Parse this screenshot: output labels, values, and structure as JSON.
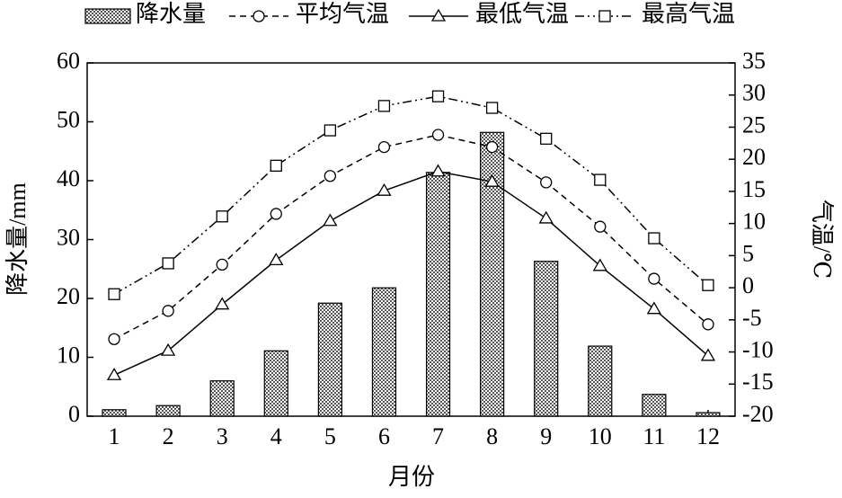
{
  "chart_data": {
    "type": "bar-line",
    "categories": [
      "1",
      "2",
      "3",
      "4",
      "5",
      "6",
      "7",
      "8",
      "9",
      "10",
      "11",
      "12"
    ],
    "xlabel": "月份",
    "ylabel": "降水量/mm",
    "y2label": "气温/℃",
    "ylim": [
      0,
      60
    ],
    "yticks": [
      0,
      10,
      20,
      30,
      40,
      50,
      60
    ],
    "y2lim": [
      -20,
      35
    ],
    "y2ticks": [
      -20,
      -15,
      -10,
      -5,
      0,
      5,
      10,
      15,
      20,
      25,
      30,
      35
    ],
    "legend": "top",
    "series": [
      {
        "name": "降水量",
        "type": "bar",
        "color": "#000000",
        "axis": "y",
        "values": [
          1.1,
          1.8,
          6.0,
          11.1,
          19.2,
          21.8,
          41.4,
          48.2,
          26.3,
          11.9,
          3.7,
          0.6
        ]
      },
      {
        "name": "平均气温",
        "type": "line",
        "style": "dashed",
        "marker": "circle",
        "color": "#000000",
        "axis": "y2",
        "values": [
          -8.0,
          -3.6,
          3.6,
          11.5,
          17.4,
          21.9,
          23.8,
          21.9,
          16.4,
          9.5,
          1.4,
          -5.7
        ]
      },
      {
        "name": "最低气温",
        "type": "line",
        "style": "solid",
        "marker": "triangle",
        "color": "#000000",
        "axis": "y2",
        "values": [
          -13.6,
          -9.8,
          -2.6,
          4.3,
          10.4,
          15.1,
          18.1,
          16.5,
          10.8,
          3.4,
          -3.3,
          -10.6
        ]
      },
      {
        "name": "最高气温",
        "type": "line",
        "style": "dashdotdot",
        "marker": "square",
        "color": "#000000",
        "axis": "y2",
        "values": [
          -1.0,
          3.8,
          11.1,
          19.0,
          24.5,
          28.3,
          29.8,
          28.0,
          23.2,
          16.8,
          7.7,
          0.4
        ]
      }
    ]
  }
}
